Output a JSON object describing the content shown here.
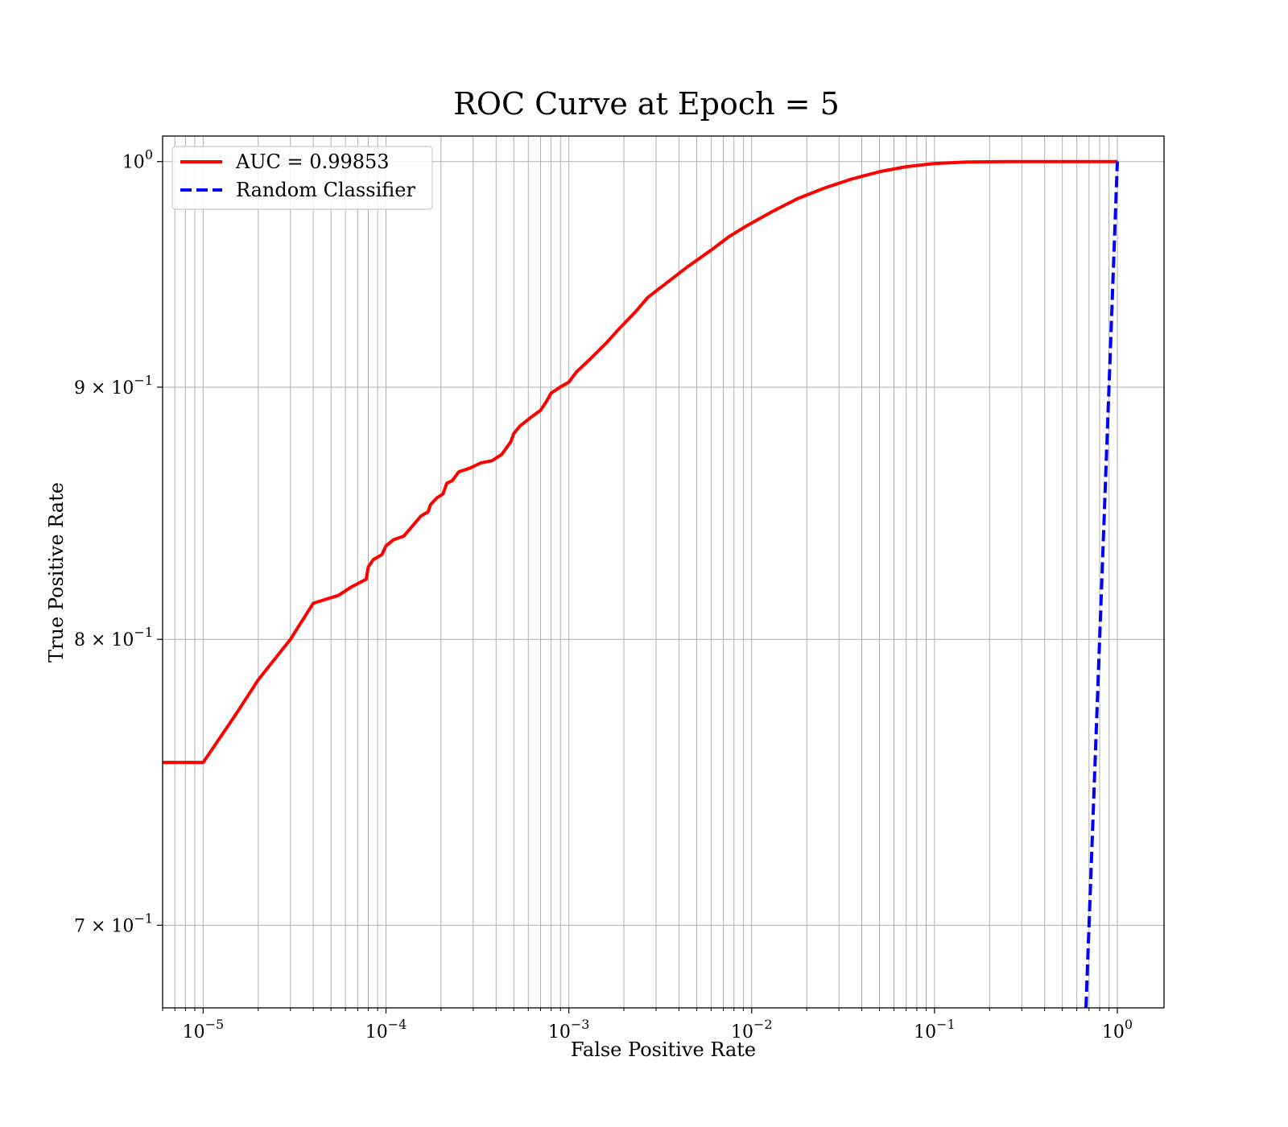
{
  "chart_data": {
    "type": "line",
    "title": "ROC Curve at Epoch = 5",
    "xlabel": "False Positive Rate",
    "ylabel": "True Positive Rate",
    "xscale": "log",
    "yscale": "log",
    "xlim": [
      6e-06,
      1.8
    ],
    "ylim": [
      0.6735,
      1.012
    ],
    "grid": true,
    "legend_position": "upper-left",
    "x_ticks": [
      {
        "value": 1e-05,
        "base": "10",
        "exp": "−5"
      },
      {
        "value": 0.0001,
        "base": "10",
        "exp": "−4"
      },
      {
        "value": 0.001,
        "base": "10",
        "exp": "−3"
      },
      {
        "value": 0.01,
        "base": "10",
        "exp": "−2"
      },
      {
        "value": 0.1,
        "base": "10",
        "exp": "−1"
      },
      {
        "value": 1,
        "base": "10",
        "exp": "0"
      }
    ],
    "y_ticks": [
      {
        "value": 1.0,
        "base": "10",
        "exp": "0",
        "coef": ""
      },
      {
        "value": 0.9,
        "base": "10",
        "exp": "−1",
        "coef": "9 × "
      },
      {
        "value": 0.8,
        "base": "10",
        "exp": "−1",
        "coef": "8 × "
      },
      {
        "value": 0.7,
        "base": "10",
        "exp": "−1",
        "coef": "7 × "
      }
    ],
    "series": [
      {
        "name": "AUC = 0.99853",
        "color": "#ff0000",
        "style": "solid",
        "x": [
          6e-06,
          1e-05,
          1.5e-05,
          2e-05,
          3e-05,
          4e-05,
          5.5e-05,
          6.5e-05,
          7.8e-05,
          8e-05,
          8.5e-05,
          9.5e-05,
          0.0001,
          0.00011,
          0.000125,
          0.00014,
          0.000155,
          0.00017,
          0.000175,
          0.00019,
          0.000205,
          0.000215,
          0.00023,
          0.00025,
          0.00029,
          0.00033,
          0.00038,
          0.00043,
          0.00048,
          0.0005,
          0.00054,
          0.00062,
          0.0007,
          0.00075,
          0.0008,
          0.0009,
          0.001,
          0.0011,
          0.0013,
          0.0016,
          0.0019,
          0.0023,
          0.0027,
          0.0035,
          0.0045,
          0.006,
          0.0075,
          0.0095,
          0.013,
          0.018,
          0.025,
          0.035,
          0.05,
          0.07,
          0.1,
          0.15,
          0.25,
          0.5,
          1.0
        ],
        "y": [
          0.7553,
          0.7553,
          0.7722,
          0.785,
          0.8,
          0.8136,
          0.8166,
          0.8199,
          0.8228,
          0.8275,
          0.8303,
          0.8323,
          0.8357,
          0.8381,
          0.8395,
          0.8436,
          0.8474,
          0.8491,
          0.8519,
          0.8547,
          0.8562,
          0.8605,
          0.8615,
          0.8651,
          0.8667,
          0.8687,
          0.8696,
          0.8722,
          0.8772,
          0.8807,
          0.8838,
          0.8874,
          0.8903,
          0.8937,
          0.8975,
          0.9001,
          0.9021,
          0.9064,
          0.9117,
          0.9187,
          0.9252,
          0.932,
          0.9385,
          0.9455,
          0.9523,
          0.9595,
          0.9655,
          0.9707,
          0.977,
          0.983,
          0.9877,
          0.9918,
          0.9953,
          0.9976,
          0.9991,
          0.9998,
          1.0,
          1.0,
          1.0
        ]
      },
      {
        "name": "Random Classifier",
        "color": "#0000ff",
        "style": "dashed",
        "x": [
          0.6735,
          0.7,
          0.75,
          0.8,
          0.85,
          0.9,
          0.95,
          1.0
        ],
        "y": [
          0.6735,
          0.7,
          0.75,
          0.8,
          0.85,
          0.9,
          0.95,
          1.0
        ]
      }
    ]
  }
}
